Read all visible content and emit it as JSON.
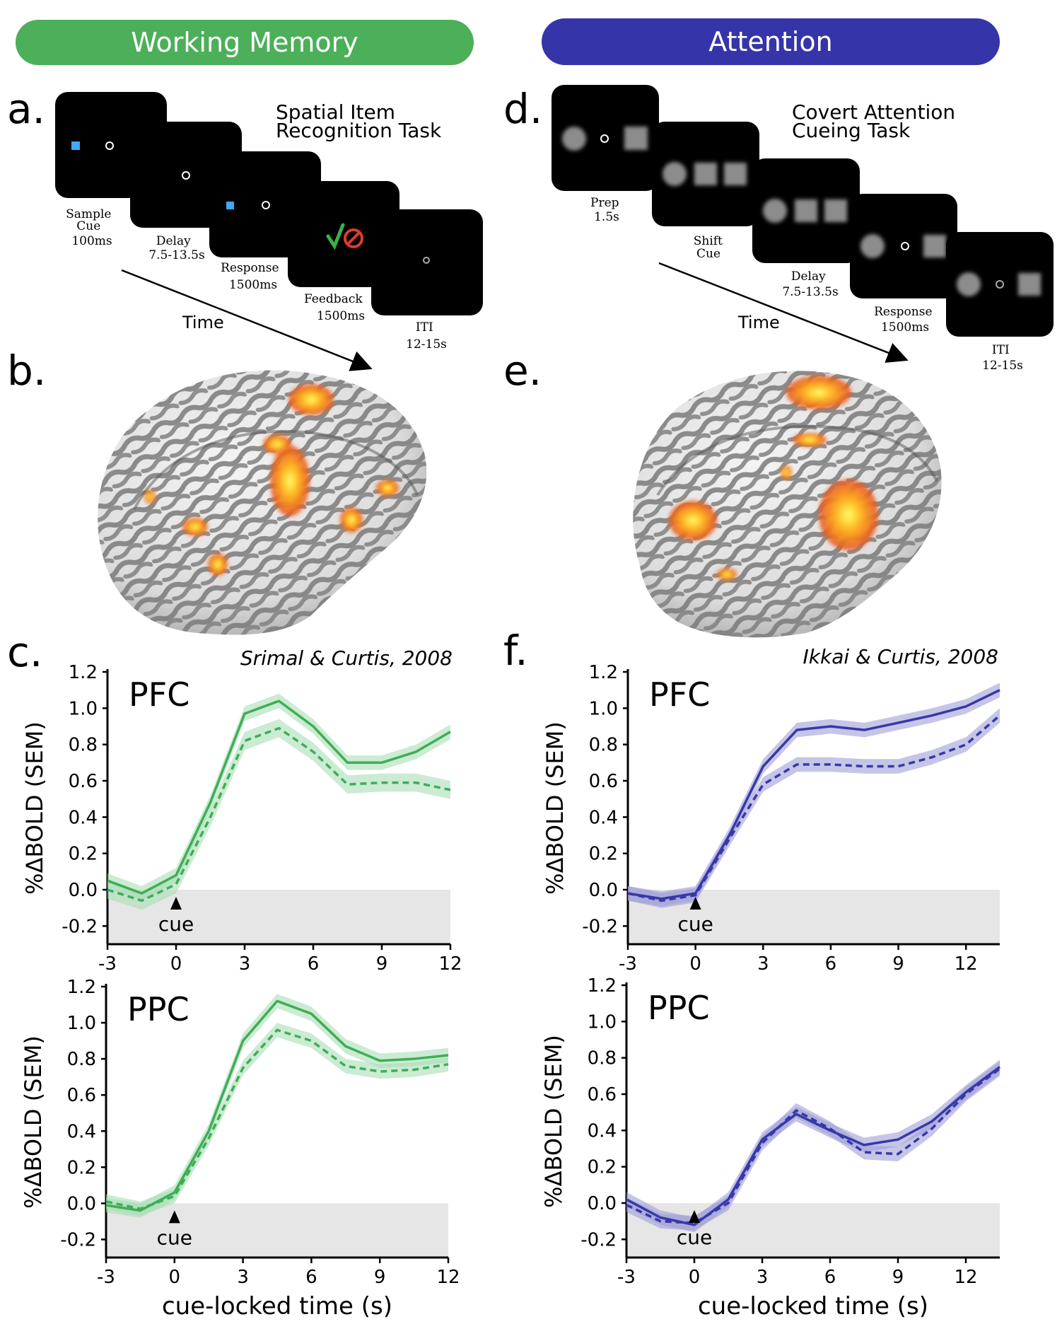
{
  "banners": {
    "wm": "Working Memory",
    "att": "Attention"
  },
  "panel_letters": {
    "a": "a.",
    "b": "b.",
    "c": "c.",
    "d": "d.",
    "e": "e.",
    "f": "f."
  },
  "wm_task": {
    "title_line1": "Spatial Item",
    "title_line2": "Recognition Task",
    "time_label": "Time",
    "frames": [
      {
        "label": [
          "Sample",
          "Cue",
          "100ms"
        ]
      },
      {
        "label": [
          "Delay",
          "7.5-13.5s"
        ]
      },
      {
        "label": [
          "Response",
          "1500ms"
        ]
      },
      {
        "label": [
          "Feedback",
          "1500ms"
        ]
      },
      {
        "label": [
          "ITI",
          "12-15s"
        ]
      }
    ]
  },
  "att_task": {
    "title_line1": "Covert Attention",
    "title_line2": "Cueing Task",
    "time_label": "Time",
    "frames": [
      {
        "label": [
          "Prep",
          "1.5s"
        ]
      },
      {
        "label": [
          "Shift",
          "Cue"
        ]
      },
      {
        "label": [
          "Delay",
          "7.5-13.5s"
        ]
      },
      {
        "label": [
          "Response",
          "1500ms"
        ]
      },
      {
        "label": [
          "ITI",
          "12-15s"
        ]
      }
    ]
  },
  "citations": {
    "c": "Srimal & Curtis, 2008",
    "f": "Ikkai & Curtis, 2008"
  },
  "colors": {
    "wm": "#3fae55",
    "wm_band": "#a9ddb5",
    "att": "#3838a8",
    "att_band": "#9e9ed8",
    "banner_wm": "#4caf59",
    "banner_att": "#3535a9"
  },
  "chart_data": [
    {
      "id": "c-pfc",
      "type": "line",
      "title": "PFC",
      "ylabel": "%ΔBOLD (SEM)",
      "xlabel": "",
      "xlim": [
        -3,
        12
      ],
      "ylim": [
        -0.3,
        1.2
      ],
      "xticks": [
        "-3",
        "0",
        "3",
        "6",
        "9",
        "12"
      ],
      "yticks": [
        "1.2",
        "1.0",
        "0.8",
        "0.6",
        "0.4",
        "0.2",
        "0.0",
        "-0.2"
      ],
      "annotation": "cue",
      "annotation_x": 0,
      "series": [
        {
          "style": "solid",
          "x": [
            -3,
            -1.5,
            0,
            1.5,
            3,
            4.5,
            6,
            7.5,
            9,
            10.5,
            12
          ],
          "y": [
            0.05,
            -0.02,
            0.08,
            0.48,
            0.97,
            1.04,
            0.9,
            0.7,
            0.7,
            0.76,
            0.87
          ],
          "sem": 0.04
        },
        {
          "style": "dashed",
          "x": [
            -3,
            -1.5,
            0,
            1.5,
            3,
            4.5,
            6,
            7.5,
            9,
            10.5,
            12
          ],
          "y": [
            0.0,
            -0.06,
            0.03,
            0.4,
            0.82,
            0.89,
            0.76,
            0.58,
            0.59,
            0.59,
            0.55
          ],
          "sem": 0.05
        }
      ]
    },
    {
      "id": "c-ppc",
      "type": "line",
      "title": "PPC",
      "ylabel": "%ΔBOLD (SEM)",
      "xlabel": "cue-locked time (s)",
      "xlim": [
        -3,
        12
      ],
      "ylim": [
        -0.3,
        1.2
      ],
      "xticks": [
        "-3",
        "0",
        "3",
        "6",
        "9",
        "12"
      ],
      "yticks": [
        "1.2",
        "1.0",
        "0.8",
        "0.6",
        "0.4",
        "0.2",
        "0.0",
        "-0.2"
      ],
      "annotation": "cue",
      "annotation_x": 0,
      "series": [
        {
          "style": "solid",
          "x": [
            -3,
            -1.5,
            0,
            1.5,
            3,
            4.5,
            6,
            7.5,
            9,
            10.5,
            12
          ],
          "y": [
            -0.01,
            -0.04,
            0.06,
            0.4,
            0.9,
            1.12,
            1.05,
            0.87,
            0.79,
            0.8,
            0.82
          ],
          "sem": 0.04
        },
        {
          "style": "dashed",
          "x": [
            -3,
            -1.5,
            0,
            1.5,
            3,
            4.5,
            6,
            7.5,
            9,
            10.5,
            12
          ],
          "y": [
            0.01,
            -0.03,
            0.04,
            0.36,
            0.75,
            0.96,
            0.9,
            0.76,
            0.73,
            0.74,
            0.77
          ],
          "sem": 0.04
        }
      ]
    },
    {
      "id": "f-pfc",
      "type": "line",
      "title": "PFC",
      "ylabel": "%ΔBOLD (SEM)",
      "xlabel": "",
      "xlim": [
        -3,
        13.5
      ],
      "ylim": [
        -0.3,
        1.2
      ],
      "xticks": [
        "-3",
        "0",
        "3",
        "6",
        "9",
        "12"
      ],
      "yticks": [
        "1.2",
        "1.0",
        "0.8",
        "0.6",
        "0.4",
        "0.2",
        "0.0",
        "-0.2"
      ],
      "annotation": "cue",
      "annotation_x": 0,
      "series": [
        {
          "style": "solid",
          "x": [
            -3,
            -1.5,
            0,
            1.5,
            3,
            4.5,
            6,
            7.5,
            9,
            10.5,
            12,
            13.5
          ],
          "y": [
            -0.02,
            -0.05,
            -0.02,
            0.3,
            0.68,
            0.88,
            0.9,
            0.88,
            0.92,
            0.96,
            1.01,
            1.1
          ],
          "sem": 0.04
        },
        {
          "style": "dashed",
          "x": [
            -3,
            -1.5,
            0,
            1.5,
            3,
            4.5,
            6,
            7.5,
            9,
            10.5,
            12,
            13.5
          ],
          "y": [
            -0.02,
            -0.06,
            -0.03,
            0.28,
            0.58,
            0.69,
            0.69,
            0.68,
            0.68,
            0.73,
            0.8,
            0.96
          ],
          "sem": 0.04
        }
      ]
    },
    {
      "id": "f-ppc",
      "type": "line",
      "title": "PPC",
      "ylabel": "%ΔBOLD (SEM)",
      "xlabel": "cue-locked time (s)",
      "xlim": [
        -3,
        13.5
      ],
      "ylim": [
        -0.3,
        1.2
      ],
      "xticks": [
        "-3",
        "0",
        "3",
        "6",
        "9",
        "12"
      ],
      "yticks": [
        "1.2",
        "1.0",
        "0.8",
        "0.6",
        "0.4",
        "0.2",
        "0.0",
        "-0.2"
      ],
      "annotation": "cue",
      "annotation_x": 0,
      "series": [
        {
          "style": "solid",
          "x": [
            -3,
            -1.5,
            0,
            1.5,
            3,
            4.5,
            6,
            7.5,
            9,
            10.5,
            12,
            13.5
          ],
          "y": [
            0.02,
            -0.08,
            -0.12,
            0.02,
            0.35,
            0.49,
            0.4,
            0.32,
            0.35,
            0.45,
            0.61,
            0.75
          ],
          "sem": 0.04
        },
        {
          "style": "dashed",
          "x": [
            -3,
            -1.5,
            0,
            1.5,
            3,
            4.5,
            6,
            7.5,
            9,
            10.5,
            12,
            13.5
          ],
          "y": [
            -0.01,
            -0.1,
            -0.11,
            0.0,
            0.33,
            0.51,
            0.41,
            0.28,
            0.27,
            0.41,
            0.6,
            0.74
          ],
          "sem": 0.04
        }
      ]
    }
  ]
}
